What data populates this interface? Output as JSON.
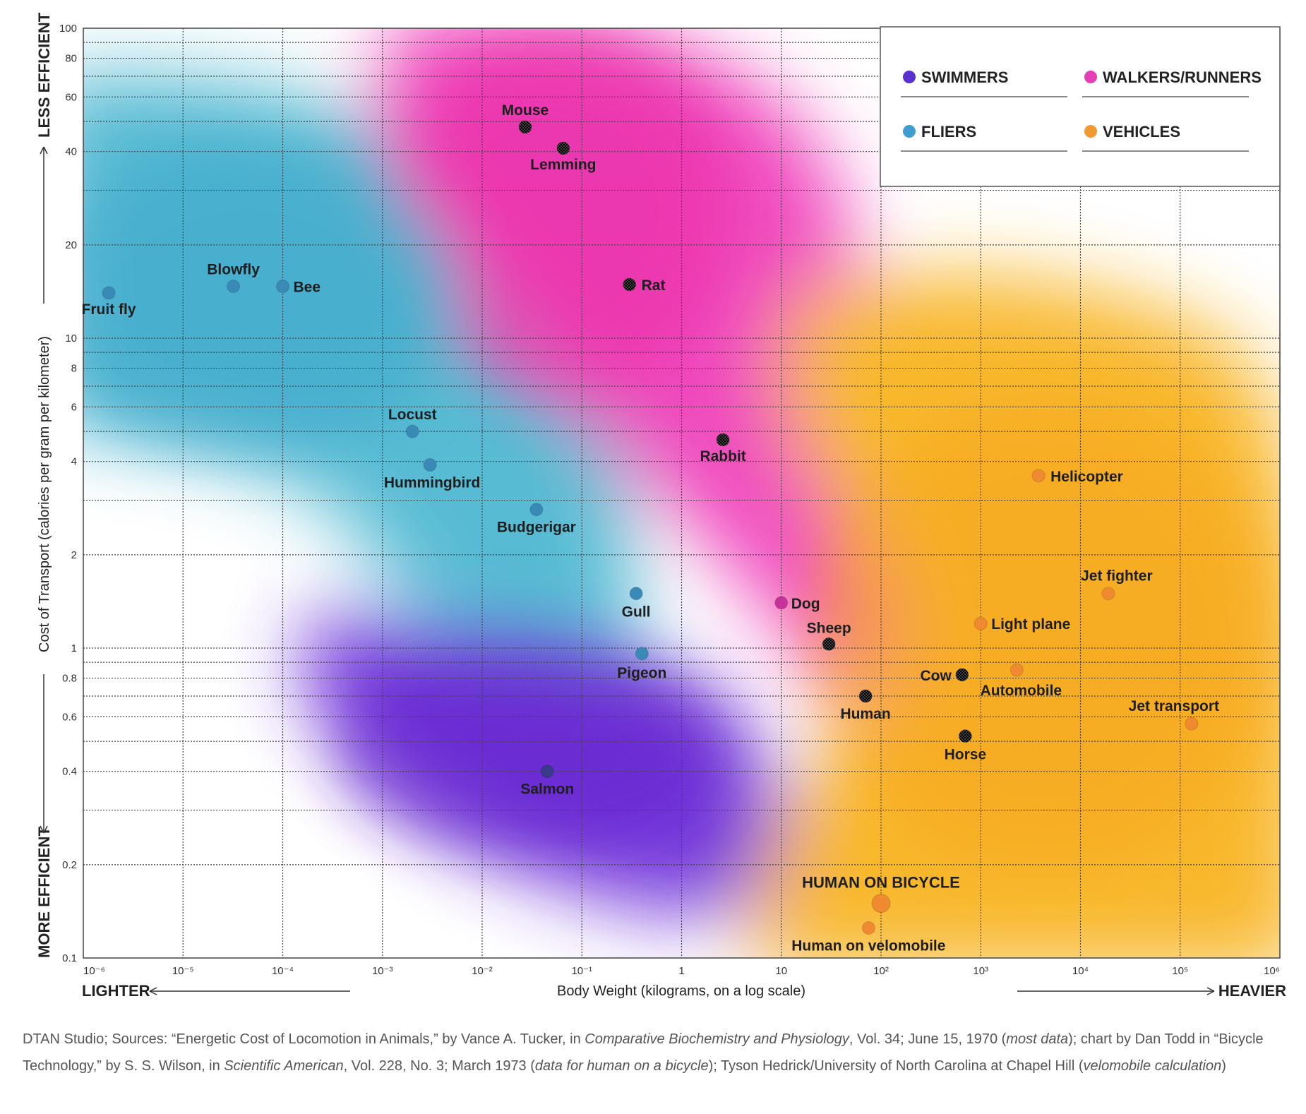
{
  "chart_data": {
    "type": "scatter",
    "x_scale": "log",
    "y_scale": "log",
    "xlim": [
      1e-06,
      1000000.0
    ],
    "ylim": [
      0.1,
      100
    ],
    "xlabel": "Body Weight (kilograms, on a log scale)",
    "ylabel": "Cost of Transport (calories per gram per kilometer)",
    "x_ticks": [
      "10⁻⁶",
      "10⁻⁵",
      "10⁻⁴",
      "10⁻³",
      "10⁻²",
      "10⁻¹",
      "1",
      "10",
      "10²",
      "10³",
      "10⁴",
      "10⁵",
      "10⁶"
    ],
    "y_ticks": [
      "100",
      "80",
      "60",
      "40",
      "20",
      "10",
      "8",
      "6",
      "4",
      "2",
      "1",
      "0.8",
      "0.6",
      "0.4",
      "0.2",
      "0.1"
    ],
    "x_left_label": "LIGHTER",
    "x_right_label": "HEAVIER",
    "y_top_label": "LESS EFFICIENT",
    "y_bottom_label": "MORE EFFICIENT",
    "grid": true,
    "legend": {
      "position": "top-right",
      "items": [
        {
          "name": "SWIMMERS",
          "color": "#5a2fd0"
        },
        {
          "name": "WALKERS/RUNNERS",
          "color": "#e43fb4"
        },
        {
          "name": "FLIERS",
          "color": "#3f9ed1"
        },
        {
          "name": "VEHICLES",
          "color": "#f19a32"
        }
      ]
    },
    "series": [
      {
        "name": "FLIERS",
        "color": "#3a8ab8",
        "points": [
          {
            "label": "Fruit fly",
            "x": 1.8e-06,
            "y": 14
          },
          {
            "label": "Blowfly",
            "x": 3.2e-05,
            "y": 14.7
          },
          {
            "label": "Bee",
            "x": 0.0001,
            "y": 14.7
          },
          {
            "label": "Locust",
            "x": 0.002,
            "y": 5
          },
          {
            "label": "Hummingbird",
            "x": 0.003,
            "y": 3.9
          },
          {
            "label": "Budgerigar",
            "x": 0.035,
            "y": 2.8
          },
          {
            "label": "Gull",
            "x": 0.35,
            "y": 1.5
          },
          {
            "label": "Pigeon",
            "x": 0.4,
            "y": 0.96
          }
        ]
      },
      {
        "name": "WALKERS/RUNNERS",
        "color": "#c7319a",
        "points": [
          {
            "label": "Mouse",
            "x": 0.027,
            "y": 48
          },
          {
            "label": "Lemming",
            "x": 0.065,
            "y": 41
          },
          {
            "label": "Rat",
            "x": 0.3,
            "y": 14.9
          },
          {
            "label": "Rabbit",
            "x": 2.6,
            "y": 4.7
          },
          {
            "label": "Dog",
            "x": 10,
            "y": 1.4
          },
          {
            "label": "Sheep",
            "x": 30,
            "y": 1.03
          },
          {
            "label": "Human",
            "x": 70,
            "y": 0.7
          },
          {
            "label": "Cow",
            "x": 650,
            "y": 0.82
          },
          {
            "label": "Horse",
            "x": 700,
            "y": 0.52
          }
        ]
      },
      {
        "name": "SWIMMERS",
        "color": "#3a3a8a",
        "points": [
          {
            "label": "Salmon",
            "x": 0.045,
            "y": 0.4
          }
        ]
      },
      {
        "name": "VEHICLES",
        "color": "#f08a30",
        "points": [
          {
            "label": "Helicopter",
            "x": 3800,
            "y": 3.6
          },
          {
            "label": "Jet fighter",
            "x": 19000,
            "y": 1.5
          },
          {
            "label": "Light plane",
            "x": 1000,
            "y": 1.2
          },
          {
            "label": "Automobile",
            "x": 2300,
            "y": 0.85
          },
          {
            "label": "Jet transport",
            "x": 130000,
            "y": 0.57
          },
          {
            "label": "HUMAN ON BICYCLE",
            "x": 100,
            "y": 0.15
          },
          {
            "label": "Human on velomobile",
            "x": 75,
            "y": 0.125
          }
        ]
      }
    ]
  },
  "caption": {
    "p1": "DTAN Studio; Sources: “Energetic Cost of Locomotion in Animals,” by Vance A. Tucker, in ",
    "i1": "Comparative Biochemistry and Physiology",
    "p2": ", Vol. 34; June 15, 1970 (",
    "i2": "most data",
    "p3": "); chart by Dan Todd in “Bicycle Technology,” by S. S. Wilson, in ",
    "i3": "Scientific American",
    "p4": ", Vol. 228, No. 3; March 1973 (",
    "i4": "data for human on a bicycle",
    "p5": "); Tyson Hedrick/University of North Carolina at Chapel Hill (",
    "i5": "velomobile calculation",
    "p6": ")"
  }
}
